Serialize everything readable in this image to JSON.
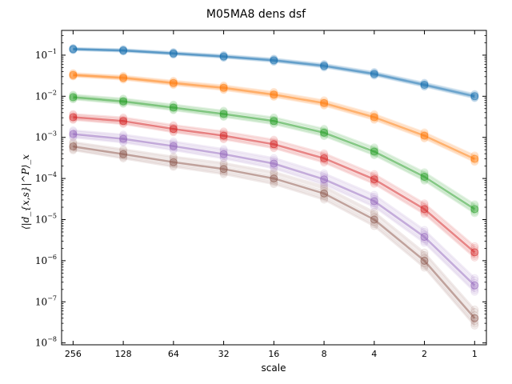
{
  "chart_data": {
    "type": "line",
    "title": "M05MA8 dens dsf",
    "xlabel": "scale",
    "ylabel": "⟨|d_{x,s}|^P⟩_x",
    "x_scale": "log2-reversed",
    "y_scale": "log",
    "x": [
      256,
      128,
      64,
      32,
      16,
      8,
      4,
      2,
      1
    ],
    "x_tick_labels": [
      "256",
      "128",
      "64",
      "32",
      "16",
      "8",
      "4",
      "2",
      "1"
    ],
    "y_tick_labels": [
      {
        "base": "10",
        "exp": "−1"
      },
      {
        "base": "10",
        "exp": "−2"
      },
      {
        "base": "10",
        "exp": "−3"
      },
      {
        "base": "10",
        "exp": "−4"
      },
      {
        "base": "10",
        "exp": "−5"
      },
      {
        "base": "10",
        "exp": "−6"
      },
      {
        "base": "10",
        "exp": "−7"
      },
      {
        "base": "10",
        "exp": "−8"
      }
    ],
    "y_tick_values": [
      0.1,
      0.01,
      0.001,
      0.0001,
      1e-05,
      1e-06,
      1e-07,
      1e-08
    ],
    "xlim": [
      300,
      0.85
    ],
    "ylim": [
      9e-09,
      0.4
    ],
    "grid": false,
    "series": [
      {
        "color": "#1f77b4",
        "values": [
          0.14,
          0.13,
          0.11,
          0.093,
          0.075,
          0.055,
          0.035,
          0.019,
          0.01
        ]
      },
      {
        "color": "#ff7f0e",
        "values": [
          0.033,
          0.028,
          0.021,
          0.016,
          0.011,
          0.0068,
          0.0031,
          0.0011,
          0.0003
        ]
      },
      {
        "color": "#2ca02c",
        "values": [
          0.0095,
          0.0075,
          0.0053,
          0.0037,
          0.0025,
          0.0013,
          0.00045,
          0.00011,
          1.8e-05
        ]
      },
      {
        "color": "#d62728",
        "values": [
          0.0031,
          0.0025,
          0.0016,
          0.0011,
          0.00068,
          0.00031,
          9.5e-05,
          1.8e-05,
          1.6e-06
        ]
      },
      {
        "color": "#9467bd",
        "values": [
          0.0012,
          0.00092,
          0.00061,
          0.00039,
          0.00023,
          9.5e-05,
          2.8e-05,
          3.8e-06,
          2.5e-07
        ]
      },
      {
        "color": "#8c564b",
        "values": [
          0.0006,
          0.00039,
          0.00025,
          0.00017,
          0.0001,
          4.3e-05,
          1e-05,
          1e-06,
          4e-08
        ]
      }
    ]
  }
}
